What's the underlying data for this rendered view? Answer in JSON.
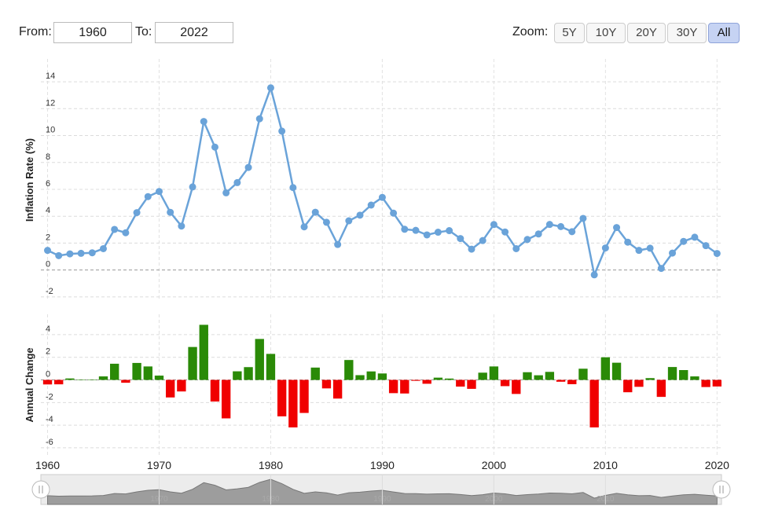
{
  "controls": {
    "from_label": "From:",
    "from_value": "1960",
    "to_label": "To:",
    "to_value": "2022",
    "zoom_label": "Zoom:",
    "zoom_buttons": [
      "5Y",
      "10Y",
      "20Y",
      "30Y",
      "All"
    ],
    "zoom_selected": "All"
  },
  "chart_data": [
    {
      "type": "line",
      "y_axis_label": "Inflation Rate (%)",
      "color": "#6aa3d9",
      "x": [
        1960,
        1961,
        1962,
        1963,
        1964,
        1965,
        1966,
        1967,
        1968,
        1969,
        1970,
        1971,
        1972,
        1973,
        1974,
        1975,
        1976,
        1977,
        1978,
        1979,
        1980,
        1981,
        1982,
        1983,
        1984,
        1985,
        1986,
        1987,
        1988,
        1989,
        1990,
        1991,
        1992,
        1993,
        1994,
        1995,
        1996,
        1997,
        1998,
        1999,
        2000,
        2001,
        2002,
        2003,
        2004,
        2005,
        2006,
        2007,
        2008,
        2009,
        2010,
        2011,
        2012,
        2013,
        2014,
        2015,
        2016,
        2017,
        2018,
        2019,
        2020
      ],
      "values": [
        1.46,
        1.07,
        1.2,
        1.24,
        1.28,
        1.59,
        3.02,
        2.77,
        4.27,
        5.46,
        5.84,
        4.29,
        3.27,
        6.18,
        11.05,
        9.14,
        5.74,
        6.5,
        7.63,
        11.25,
        13.55,
        10.33,
        6.13,
        3.21,
        4.3,
        3.55,
        1.9,
        3.66,
        4.08,
        4.83,
        5.4,
        4.23,
        3.03,
        2.95,
        2.61,
        2.81,
        2.93,
        2.34,
        1.55,
        2.19,
        3.38,
        2.83,
        1.59,
        2.27,
        2.68,
        3.39,
        3.23,
        2.85,
        3.84,
        -0.36,
        1.64,
        3.16,
        2.07,
        1.46,
        1.62,
        0.12,
        1.26,
        2.13,
        2.44,
        1.81,
        1.23
      ],
      "xlim": [
        1959.4,
        2020.4
      ],
      "xticks": [
        1960,
        1970,
        1980,
        1990,
        2000,
        2010,
        2020
      ],
      "x_axis_labels": false,
      "ylim": [
        -2.3,
        15.7
      ],
      "yticks": [
        -2,
        0,
        2,
        4,
        6,
        8,
        10,
        12,
        14
      ],
      "grid": true
    },
    {
      "type": "bar",
      "y_axis_label": "Annual Change",
      "positive_color": "#2a8a07",
      "negative_color": "#f00000",
      "x": [
        1960,
        1961,
        1962,
        1963,
        1964,
        1965,
        1966,
        1967,
        1968,
        1969,
        1970,
        1971,
        1972,
        1973,
        1974,
        1975,
        1976,
        1977,
        1978,
        1979,
        1980,
        1981,
        1982,
        1983,
        1984,
        1985,
        1986,
        1987,
        1988,
        1989,
        1990,
        1991,
        1992,
        1993,
        1994,
        1995,
        1996,
        1997,
        1998,
        1999,
        2000,
        2001,
        2002,
        2003,
        2004,
        2005,
        2006,
        2007,
        2008,
        2009,
        2010,
        2011,
        2012,
        2013,
        2014,
        2015,
        2016,
        2017,
        2018,
        2019,
        2020
      ],
      "values": [
        -0.4,
        -0.39,
        0.13,
        0.04,
        0.04,
        0.31,
        1.43,
        -0.25,
        1.5,
        1.19,
        0.38,
        -1.55,
        -1.02,
        2.91,
        4.87,
        -1.91,
        -3.4,
        0.76,
        1.13,
        3.62,
        2.3,
        -3.22,
        -4.2,
        -2.92,
        1.09,
        -0.75,
        -1.65,
        1.76,
        0.42,
        0.75,
        0.57,
        -1.17,
        -1.2,
        -0.08,
        -0.34,
        0.2,
        0.12,
        -0.59,
        -0.79,
        0.64,
        1.19,
        -0.55,
        -1.24,
        0.68,
        0.41,
        0.71,
        -0.16,
        -0.38,
        0.99,
        -4.2,
        2.0,
        1.52,
        -1.09,
        -0.61,
        0.16,
        -1.5,
        1.14,
        0.87,
        0.31,
        -0.63,
        -0.58
      ],
      "xlim": [
        1959.4,
        2020.4
      ],
      "xticks": [
        1960,
        1970,
        1980,
        1990,
        2000,
        2010,
        2020
      ],
      "x_axis_labels": true,
      "ylim": [
        -6.7,
        5.8
      ],
      "yticks": [
        -6,
        -4,
        -2,
        0,
        2,
        4
      ],
      "grid": true
    }
  ],
  "navigator": {
    "xticks": [
      1970,
      1980,
      1990,
      2000,
      2010
    ]
  }
}
